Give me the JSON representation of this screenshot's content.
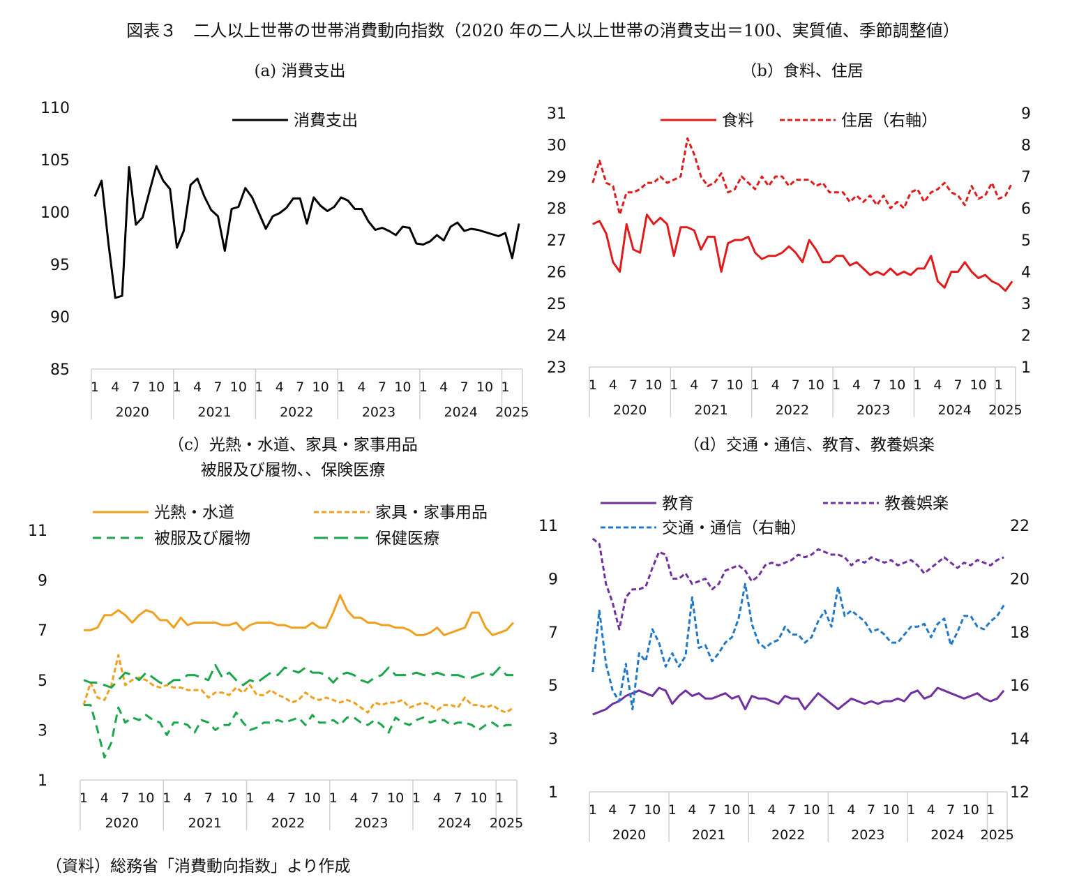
{
  "title": "図表３　二人以上世帯の世帯消費動向指数（2020 年の二人以上世帯の消費支出＝100、実質値、季節調整値）",
  "source": "（資料）総務省「消費動向指数」より作成",
  "month_labels": [
    "1",
    "4",
    "7",
    "10"
  ],
  "year_labels": [
    "2020",
    "2021",
    "2022",
    "2023",
    "2024",
    "2025"
  ],
  "panel_titles": {
    "a": [
      "(a) 消費支出"
    ],
    "b": [
      "（b）食料、住居"
    ],
    "c": [
      "（c）光熱・水道、家具・家事用品",
      "被服及び履物、、保険医療"
    ],
    "d": [
      "（d）交通・通信、教育、教養娯楽"
    ]
  },
  "chart_data": [
    {
      "id": "a",
      "type": "line",
      "x_start": "2020-01",
      "x_end": "2025-02",
      "ylim": [
        85,
        110
      ],
      "yticks": [
        85,
        90,
        95,
        100,
        105,
        110
      ],
      "series": [
        {
          "name": "消費支出",
          "color": "#000000",
          "dash": "solid",
          "axis": "left",
          "values": [
            101.5,
            103,
            97,
            91.8,
            92,
            104.3,
            98.8,
            99.5,
            102,
            104.4,
            103,
            102.2,
            96.6,
            98.2,
            102.6,
            103.2,
            101.5,
            100.2,
            99.6,
            96.3,
            100.3,
            100.5,
            102.3,
            101.4,
            99.9,
            98.4,
            99.6,
            99.9,
            100.4,
            101.3,
            101.3,
            98.9,
            101.4,
            100.6,
            100.1,
            100.5,
            101.4,
            101.1,
            100.3,
            100.3,
            99.1,
            98.3,
            98.5,
            98.2,
            97.8,
            98.6,
            98.5,
            97.0,
            96.9,
            97.2,
            97.8,
            97.3,
            98.6,
            99.0,
            98.2,
            98.4,
            98.3,
            98.1,
            97.9,
            97.7,
            98.0,
            95.6,
            98.9
          ]
        }
      ]
    },
    {
      "id": "b",
      "type": "line",
      "x_start": "2020-01",
      "x_end": "2025-02",
      "ylim": [
        23,
        31
      ],
      "yticks": [
        23,
        24,
        25,
        26,
        27,
        28,
        29,
        30,
        31
      ],
      "y2lim": [
        1,
        9
      ],
      "y2ticks": [
        1,
        2,
        3,
        4,
        5,
        6,
        7,
        8,
        9
      ],
      "series": [
        {
          "name": "食料",
          "color": "#e01b1b",
          "dash": "solid",
          "axis": "left",
          "values": [
            27.5,
            27.6,
            27.2,
            26.3,
            26.0,
            27.5,
            26.7,
            26.6,
            27.8,
            27.5,
            27.7,
            27.5,
            26.5,
            27.4,
            27.4,
            27.3,
            26.7,
            27.1,
            27.1,
            26.0,
            26.9,
            27.0,
            27.0,
            27.1,
            26.6,
            26.4,
            26.5,
            26.5,
            26.6,
            26.8,
            26.6,
            26.3,
            27.0,
            26.7,
            26.3,
            26.3,
            26.5,
            26.5,
            26.2,
            26.3,
            26.1,
            25.9,
            26.0,
            25.9,
            26.1,
            25.9,
            26.0,
            25.9,
            26.1,
            26.1,
            26.5,
            25.7,
            25.5,
            26.0,
            26.0,
            26.3,
            26.0,
            25.8,
            25.9,
            25.7,
            25.6,
            25.4,
            25.7
          ]
        },
        {
          "name": "住居（右軸）",
          "color": "#e01b1b",
          "dash": "short",
          "axis": "right",
          "values": [
            6.8,
            7.5,
            6.8,
            6.7,
            5.8,
            6.5,
            6.5,
            6.6,
            6.8,
            6.8,
            7.0,
            6.8,
            6.9,
            7.0,
            8.2,
            7.7,
            7.0,
            6.7,
            6.8,
            7.1,
            6.5,
            6.6,
            7.0,
            6.8,
            6.6,
            7.0,
            6.7,
            7.0,
            7.0,
            6.7,
            6.9,
            6.9,
            6.9,
            6.7,
            6.8,
            6.5,
            6.5,
            6.5,
            6.2,
            6.4,
            6.2,
            6.4,
            6.1,
            6.4,
            6.0,
            6.2,
            6.0,
            6.5,
            6.6,
            6.2,
            6.5,
            6.6,
            6.8,
            6.5,
            6.4,
            6.1,
            6.7,
            6.3,
            6.4,
            6.8,
            6.3,
            6.4,
            6.8
          ]
        }
      ]
    },
    {
      "id": "c",
      "type": "line",
      "x_start": "2020-01",
      "x_end": "2025-02",
      "ylim": [
        1,
        11
      ],
      "yticks": [
        1,
        3,
        5,
        7,
        9,
        11
      ],
      "series": [
        {
          "name": "光熱・水道",
          "color": "#f0a01e",
          "dash": "solid",
          "axis": "left",
          "values": [
            7.0,
            7.0,
            7.1,
            7.6,
            7.6,
            7.8,
            7.6,
            7.3,
            7.6,
            7.8,
            7.7,
            7.4,
            7.4,
            7.1,
            7.5,
            7.2,
            7.3,
            7.3,
            7.3,
            7.3,
            7.2,
            7.2,
            7.3,
            7.0,
            7.2,
            7.3,
            7.3,
            7.3,
            7.2,
            7.2,
            7.1,
            7.1,
            7.1,
            7.3,
            7.1,
            7.1,
            7.7,
            8.4,
            7.8,
            7.5,
            7.5,
            7.3,
            7.3,
            7.2,
            7.2,
            7.1,
            7.1,
            7.0,
            6.8,
            6.8,
            6.9,
            7.1,
            6.8,
            6.9,
            7.0,
            7.1,
            7.7,
            7.7,
            7.1,
            6.8,
            6.9,
            7.0,
            7.3
          ]
        },
        {
          "name": "家具・家事用品",
          "color": "#f0a01e",
          "dash": "short",
          "axis": "left",
          "values": [
            4.0,
            4.9,
            4.3,
            4.2,
            4.8,
            6.0,
            4.8,
            5.0,
            5.1,
            5.0,
            4.8,
            4.7,
            4.8,
            4.7,
            4.7,
            4.6,
            4.6,
            4.6,
            4.3,
            4.5,
            4.5,
            4.4,
            4.7,
            4.5,
            4.8,
            4.4,
            4.4,
            4.6,
            4.4,
            4.3,
            4.1,
            4.2,
            4.5,
            4.3,
            4.2,
            4.3,
            4.2,
            4.1,
            4.2,
            4.1,
            3.9,
            3.7,
            4.1,
            4.0,
            4.1,
            4.1,
            4.2,
            3.9,
            4.0,
            4.1,
            4.0,
            3.8,
            4.0,
            4.0,
            3.9,
            4.3,
            4.0,
            4.0,
            3.9,
            4.0,
            3.8,
            3.7,
            3.9
          ]
        },
        {
          "name": "被服及び履物",
          "color": "#1aa64a",
          "dash": "medium",
          "axis": "left",
          "values": [
            4.0,
            4.0,
            3.0,
            1.9,
            2.5,
            3.9,
            3.3,
            3.5,
            3.4,
            3.6,
            3.4,
            3.3,
            2.8,
            3.3,
            3.3,
            3.2,
            2.9,
            3.4,
            3.3,
            3.0,
            3.2,
            3.2,
            3.7,
            3.3,
            3.0,
            3.1,
            3.3,
            3.3,
            3.4,
            3.3,
            3.4,
            3.5,
            3.2,
            3.6,
            3.3,
            3.3,
            3.4,
            3.2,
            3.5,
            3.5,
            3.3,
            3.2,
            3.4,
            3.2,
            2.9,
            3.5,
            3.3,
            3.2,
            3.4,
            3.5,
            3.3,
            3.4,
            3.4,
            3.2,
            3.3,
            3.3,
            3.2,
            3.0,
            3.2,
            3.3,
            3.1,
            3.2,
            3.2
          ]
        },
        {
          "name": "保健医療",
          "color": "#1aa64a",
          "dash": "long",
          "axis": "left",
          "values": [
            5.0,
            4.9,
            4.9,
            4.8,
            4.7,
            5.0,
            5.3,
            5.2,
            5.0,
            5.3,
            5.1,
            4.9,
            4.8,
            5.0,
            5.0,
            5.2,
            5.2,
            5.1,
            5.0,
            5.6,
            5.1,
            5.3,
            5.0,
            4.8,
            5.0,
            4.9,
            5.1,
            5.3,
            5.2,
            5.5,
            5.4,
            5.3,
            5.5,
            5.3,
            5.3,
            5.2,
            4.9,
            5.2,
            5.3,
            5.2,
            5.0,
            4.9,
            5.1,
            5.2,
            5.5,
            5.2,
            5.2,
            5.2,
            5.3,
            5.2,
            5.2,
            5.3,
            5.2,
            5.2,
            5.2,
            5.1,
            5.1,
            5.2,
            5.3,
            5.2,
            5.5,
            5.2,
            5.2
          ]
        }
      ]
    },
    {
      "id": "d",
      "type": "line",
      "x_start": "2020-01",
      "x_end": "2025-02",
      "ylim": [
        1,
        11
      ],
      "yticks": [
        1,
        3,
        5,
        7,
        9,
        11
      ],
      "y2lim": [
        12,
        22
      ],
      "y2ticks": [
        12,
        14,
        16,
        18,
        20,
        22
      ],
      "series": [
        {
          "name": "教育",
          "color": "#7030a0",
          "dash": "solid",
          "axis": "left",
          "values": [
            3.9,
            4.0,
            4.1,
            4.3,
            4.4,
            4.6,
            4.7,
            4.8,
            4.7,
            4.6,
            4.9,
            4.8,
            4.3,
            4.6,
            4.8,
            4.6,
            4.7,
            4.5,
            4.5,
            4.6,
            4.7,
            4.5,
            4.6,
            4.1,
            4.6,
            4.5,
            4.5,
            4.4,
            4.3,
            4.6,
            4.5,
            4.5,
            4.1,
            4.4,
            4.7,
            4.5,
            4.3,
            4.1,
            4.3,
            4.5,
            4.4,
            4.3,
            4.4,
            4.3,
            4.4,
            4.4,
            4.5,
            4.4,
            4.7,
            4.8,
            4.5,
            4.6,
            4.9,
            4.8,
            4.7,
            4.6,
            4.5,
            4.6,
            4.7,
            4.5,
            4.4,
            4.5,
            4.8
          ]
        },
        {
          "name": "教養娯楽",
          "color": "#7030a0",
          "dash": "short",
          "axis": "left",
          "values": [
            10.5,
            10.3,
            8.8,
            8.1,
            7.1,
            8.3,
            8.6,
            8.6,
            8.7,
            9.4,
            10.0,
            9.9,
            9.0,
            9.0,
            9.2,
            8.8,
            8.9,
            9.0,
            8.6,
            8.8,
            9.3,
            9.4,
            9.5,
            9.3,
            8.9,
            9.1,
            9.5,
            9.6,
            9.5,
            9.6,
            9.7,
            9.9,
            9.8,
            9.9,
            10.1,
            10.0,
            9.9,
            9.9,
            9.8,
            9.5,
            9.7,
            9.6,
            9.8,
            9.7,
            9.6,
            9.7,
            9.5,
            9.6,
            9.7,
            9.5,
            9.2,
            9.4,
            9.6,
            9.8,
            9.6,
            9.4,
            9.6,
            9.5,
            9.7,
            9.6,
            9.5,
            9.7,
            9.8
          ]
        },
        {
          "name": "交通・通信（右軸）",
          "color": "#1f78c8",
          "dash": "short",
          "axis": "right",
          "values": [
            16.5,
            18.8,
            16.8,
            15.8,
            15.4,
            16.8,
            15.1,
            17.2,
            16.9,
            18.1,
            17.6,
            16.7,
            17.2,
            16.7,
            17.1,
            19.3,
            17.4,
            17.5,
            16.9,
            17.2,
            17.6,
            17.8,
            18.5,
            19.8,
            18.3,
            17.6,
            17.4,
            17.6,
            17.7,
            18.2,
            17.9,
            17.9,
            17.6,
            17.8,
            18.4,
            18.8,
            18.2,
            19.7,
            18.6,
            18.8,
            18.6,
            18.4,
            18.0,
            18.1,
            17.9,
            17.6,
            17.6,
            17.9,
            18.2,
            18.2,
            18.3,
            17.8,
            18.3,
            18.5,
            17.5,
            18.0,
            18.6,
            18.6,
            18.2,
            18.1,
            18.4,
            18.6,
            19.0
          ]
        }
      ]
    }
  ]
}
